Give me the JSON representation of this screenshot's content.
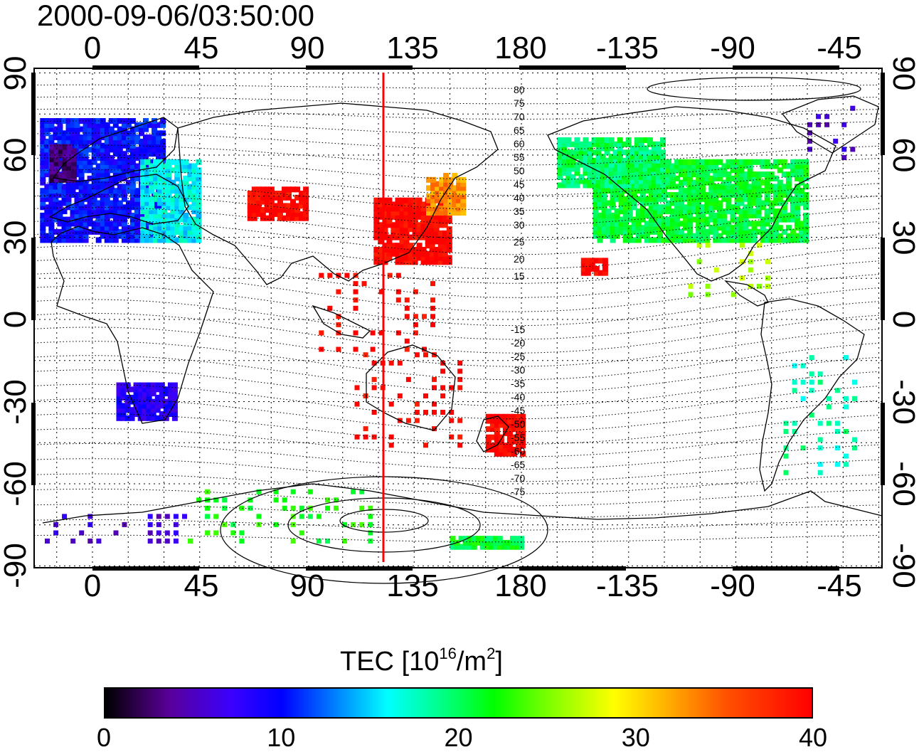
{
  "title": "2000-09-06/03:50:00",
  "x_ticks": [
    "0",
    "45",
    "90",
    "135",
    "180",
    "-135",
    "-90",
    "-45"
  ],
  "y_ticks": [
    "90",
    "60",
    "30",
    "0",
    "-30",
    "-60",
    "-90"
  ],
  "mag_labels_north": [
    "80",
    "75",
    "70",
    "65",
    "60",
    "55",
    "50",
    "45",
    "40",
    "35",
    "30",
    "25",
    "20",
    "15"
  ],
  "mag_labels_south": [
    "-15",
    "-20",
    "-25",
    "-30",
    "-35",
    "-40",
    "-45",
    "-50",
    "-55",
    "-60",
    "-65",
    "-70",
    "-75"
  ],
  "colorbar": {
    "label_prefix": "TEC  [10",
    "label_exp1": "16",
    "label_mid": "/m",
    "label_exp2": "2",
    "label_suffix": "]",
    "ticks": [
      "0",
      "10",
      "20",
      "30",
      "40"
    ],
    "min": 0,
    "max": 40
  },
  "meridian_longitude": 124,
  "colors": {
    "meridian": "#ff0000",
    "coast": "#000000",
    "grid": "#000000"
  },
  "tec_regions": [
    {
      "lon0": -22,
      "lon1": 30,
      "lat0": 30,
      "lat1": 75,
      "v": 10
    },
    {
      "lon0": -18,
      "lon1": -8,
      "lat0": 52,
      "lat1": 65,
      "v": 3
    },
    {
      "lon0": 20,
      "lon1": 45,
      "lat0": 30,
      "lat1": 60,
      "v": 16
    },
    {
      "lon0": 65,
      "lon1": 90,
      "lat0": 38,
      "lat1": 50,
      "v": 40
    },
    {
      "lon0": 118,
      "lon1": 150,
      "lat0": 22,
      "lat1": 46,
      "v": 40
    },
    {
      "lon0": 140,
      "lon1": 155,
      "lat0": 40,
      "lat1": 55,
      "v": 33
    },
    {
      "lon0": 95,
      "lon1": 145,
      "lat0": -10,
      "lat1": 20,
      "v": 40,
      "sparse": true
    },
    {
      "lon0": 110,
      "lon1": 155,
      "lat0": -45,
      "lat1": -10,
      "v": 40,
      "sparse": true
    },
    {
      "lon0": 165,
      "lon1": 180,
      "lat0": -48,
      "lat1": -34,
      "v": 40
    },
    {
      "lon0": 10,
      "lon1": 34,
      "lat0": -35,
      "lat1": -22,
      "v": 8
    },
    {
      "lon0": -150,
      "lon1": -60,
      "lat0": 30,
      "lat1": 60,
      "v": 21
    },
    {
      "lon0": -165,
      "lon1": -120,
      "lat0": 50,
      "lat1": 68,
      "v": 20
    },
    {
      "lon0": -155,
      "lon1": -145,
      "lat0": 18,
      "lat1": 24,
      "v": 40
    },
    {
      "lon0": -110,
      "lon1": -75,
      "lat0": 10,
      "lat1": 30,
      "v": 26,
      "sparse": true
    },
    {
      "lon0": -70,
      "lon1": -40,
      "lat0": -55,
      "lat1": -10,
      "v": 18,
      "sparse": true
    },
    {
      "lon0": -60,
      "lon1": -40,
      "lat0": 60,
      "lat1": 80,
      "v": 6,
      "sparse": true
    },
    {
      "lon0": -20,
      "lon1": 40,
      "lat0": -80,
      "lat1": -70,
      "v": 6,
      "sparse": true
    },
    {
      "lon0": 40,
      "lon1": 120,
      "lat0": -80,
      "lat1": -60,
      "v": 22,
      "sparse": true
    },
    {
      "lon0": 150,
      "lon1": 180,
      "lat0": -82,
      "lat1": -78,
      "v": 21
    }
  ]
}
